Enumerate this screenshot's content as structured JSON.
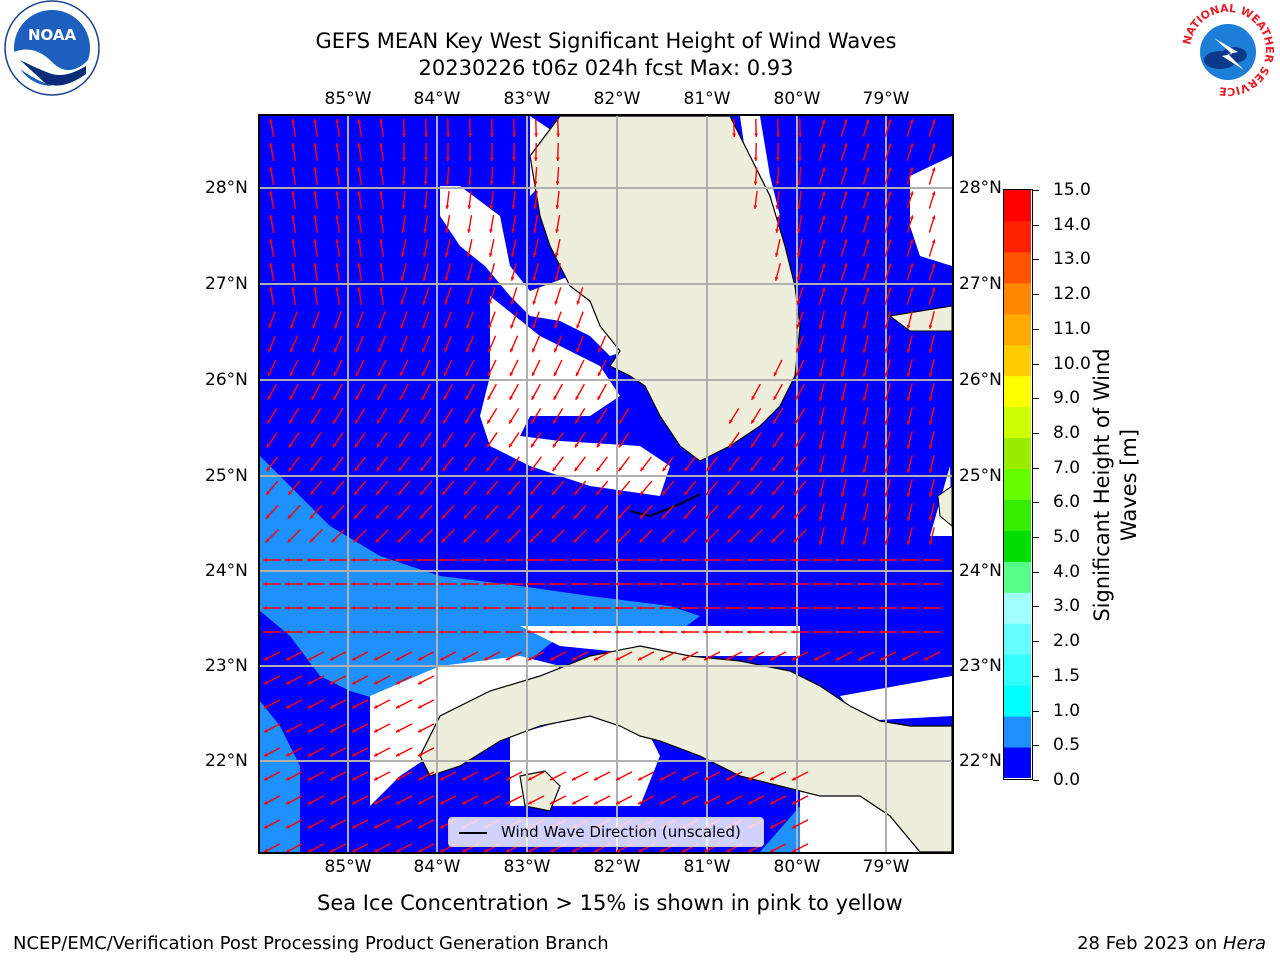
{
  "header": {
    "title_line1": "GEFS MEAN Key West Significant Height of Wind Waves",
    "title_line2": "20230226 t06z 024h fcst   Max: 0.93"
  },
  "logos": {
    "noaa_text": "NOAA",
    "nws_ring_text": "NATIONAL WEATHER SERVICE"
  },
  "map": {
    "lon_ticks": [
      "85°W",
      "84°W",
      "83°W",
      "82°W",
      "81°W",
      "80°W",
      "79°W"
    ],
    "lat_ticks": [
      "28°N",
      "27°N",
      "26°N",
      "25°N",
      "24°N",
      "23°N",
      "22°N"
    ],
    "legend_label": "Wind Wave Direction (unscaled)",
    "colors": {
      "ocean": "#0000ff",
      "higher_waves": "#1e90ff",
      "land": "#eeeedd",
      "arrows": "#ff0000",
      "grid": "#b0b0b0"
    }
  },
  "colorbar": {
    "title": "Significant Height of Wind Waves [m]",
    "levels": [
      "15.0",
      "14.0",
      "13.0",
      "12.0",
      "11.0",
      "10.0",
      "9.0",
      "8.0",
      "7.0",
      "6.0",
      "5.0",
      "4.0",
      "3.0",
      "2.0",
      "1.5",
      "1.0",
      "0.5",
      "0.0"
    ],
    "colors_bottom_to_top": [
      "#0000ff",
      "#1e90ff",
      "#00ffff",
      "#33ffff",
      "#66ffff",
      "#a0ffff",
      "#55ff88",
      "#00dd00",
      "#33ee00",
      "#66ff00",
      "#99ee00",
      "#ccff00",
      "#ffff00",
      "#ffcc00",
      "#ffaa00",
      "#ff8800",
      "#ff5500",
      "#ff2200",
      "#ff0000"
    ]
  },
  "note": "Sea Ice Concentration > 15% is shown in pink to yellow",
  "footer": {
    "left": "NCEP/EMC/Verification Post Processing Product Generation Branch",
    "date": "28 Feb 2023 on ",
    "machine": "Hera"
  }
}
